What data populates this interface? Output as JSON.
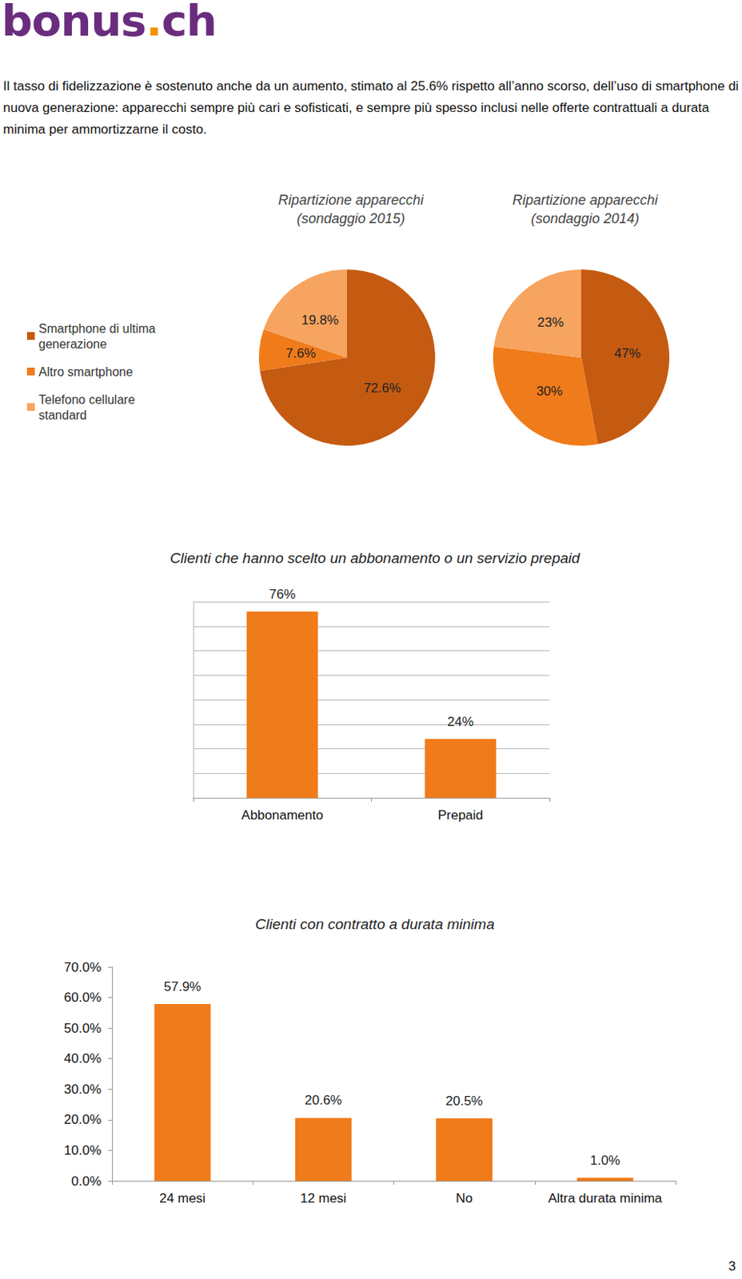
{
  "logo": "bonus.ch",
  "text": "Il tasso di fidelizzazione è sostenuto anche da un aumento, stimato al 25.6% rispetto all’anno scorso, dell’uso di smartphone di nuova generazione: apparecchi sempre più cari e sofisticati, e sempre più spesso inclusi nelle offerte contrattuali a durata minima per ammortizzarne il costo.",
  "page_number": "3",
  "chart_data": [
    {
      "type": "pie",
      "title": "Ripartizione apparecchi\n(sondaggio 2015)",
      "categories": [
        "Smartphone di ultima generazione",
        "Altro smartphone",
        "Telefono cellulare standard"
      ],
      "values": [
        72.6,
        7.6,
        19.8
      ],
      "value_labels": [
        "72.6%",
        "7.6%",
        "19.8%"
      ],
      "colors": [
        "#c55a11",
        "#f07b1a",
        "#f6a45f"
      ],
      "data_labels": true,
      "legend": "left"
    },
    {
      "type": "pie",
      "title": "Ripartizione apparecchi\n(sondaggio 2014)",
      "categories": [
        "Smartphone di ultima generazione",
        "Altro smartphone",
        "Telefono cellulare standard"
      ],
      "values": [
        47,
        30,
        23
      ],
      "value_labels": [
        "47%",
        "30%",
        "23%"
      ],
      "colors": [
        "#c55a11",
        "#f07b1a",
        "#f6a45f"
      ],
      "data_labels": true
    },
    {
      "type": "bar",
      "title": "Clienti che hanno scelto un abbonamento o un servizio prepaid",
      "categories": [
        "Abbonamento",
        "Prepaid"
      ],
      "values": [
        76,
        24
      ],
      "value_labels": [
        "76%",
        "24%"
      ],
      "color": "#f07b1a",
      "ylim": [
        0,
        80
      ],
      "yticks": [
        0,
        10,
        20,
        30,
        40,
        50,
        60,
        70,
        80
      ],
      "grid": true,
      "data_labels": true,
      "tick_labels": "x"
    },
    {
      "type": "bar",
      "title": "Clienti con contratto a durata minima",
      "categories": [
        "24 mesi",
        "12 mesi",
        "No",
        "Altra durata minima"
      ],
      "values": [
        57.9,
        20.6,
        20.5,
        1.0
      ],
      "value_labels": [
        "57.9%",
        "20.6%",
        "20.5%",
        "1.0%"
      ],
      "color": "#f07b1a",
      "ylim": [
        0,
        70
      ],
      "yticks": [
        {
          "value": 0,
          "label": "0.0%"
        },
        {
          "value": 10,
          "label": "10.0%"
        },
        {
          "value": 20,
          "label": "20.0%"
        },
        {
          "value": 30,
          "label": "30.0%"
        },
        {
          "value": 40,
          "label": "40.0%"
        },
        {
          "value": 50,
          "label": "50.0%"
        },
        {
          "value": 60,
          "label": "60.0%"
        },
        {
          "value": 70,
          "label": "70.0%"
        }
      ],
      "grid": false,
      "data_labels": true
    }
  ]
}
